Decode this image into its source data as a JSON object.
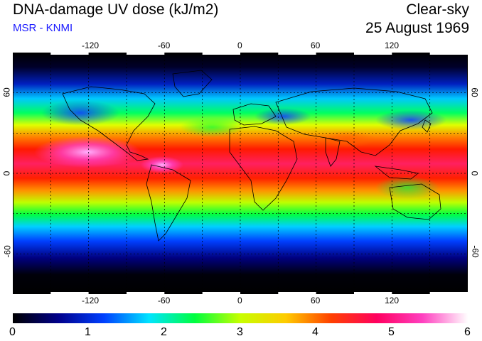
{
  "header": {
    "title": "DNA-damage UV dose (kJ/m2)",
    "source": "MSR - KNMI",
    "condition": "Clear-sky",
    "date": "25 August 1969"
  },
  "map": {
    "projection": "equirectangular",
    "lon_range": [
      -180,
      180
    ],
    "lat_range": [
      -90,
      90
    ],
    "grid": "dashed, every 30 degrees",
    "lon_ticks": [
      "-120",
      "-60",
      "0",
      "60",
      "120"
    ],
    "lat_ticks_left": [
      "60",
      "0",
      "-60"
    ],
    "lat_ticks_right": [
      "60",
      "0",
      "-60"
    ]
  },
  "colorbar": {
    "min": 0,
    "max": 6,
    "labels": [
      "0",
      "1",
      "2",
      "3",
      "4",
      "5",
      "6"
    ],
    "colors": [
      "#000000",
      "#00008b",
      "#0040ff",
      "#00e5ff",
      "#00ff40",
      "#c8ff00",
      "#ffcc00",
      "#ff4000",
      "#ff0060",
      "#ff40c0",
      "#ffffff"
    ]
  }
}
